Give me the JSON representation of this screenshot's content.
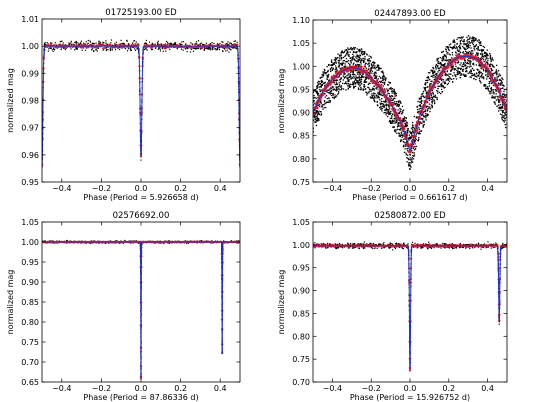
{
  "figure": {
    "colors": {
      "data": "#000000",
      "binned": "#e8202a",
      "model": "#1f2fc8",
      "frame": "#000000"
    }
  },
  "chart_data": [
    {
      "type": "scatter",
      "title": "01725193.00  ED",
      "xlabel": "Phase (Period = 5.926658 d)",
      "ylabel": "normalized mag",
      "xlim": [
        -0.5,
        0.5
      ],
      "ylim": [
        0.95,
        1.01
      ],
      "xticks": [
        -0.4,
        -0.2,
        0.0,
        0.2,
        0.4
      ],
      "xtick_labels": [
        "−0.4",
        "−0.2",
        "0.0",
        "0.2",
        "0.4"
      ],
      "yticks": [
        0.95,
        0.96,
        0.97,
        0.98,
        0.99,
        1.0,
        1.01
      ],
      "ytick_labels": [
        "0.95",
        "0.96",
        "0.97",
        "0.98",
        "0.99",
        "1.00",
        "1.01"
      ],
      "baseline": 1.0,
      "noise": 0.0012,
      "eclipses": [
        {
          "phase": -0.5,
          "depth": 0.044,
          "width": 0.006
        },
        {
          "phase": 0.0,
          "depth": 0.04,
          "width": 0.006
        },
        {
          "phase": 0.5,
          "depth": 0.044,
          "width": 0.006
        }
      ],
      "series": [
        {
          "name": "",
          "kind": "raw"
        },
        {
          "name": "",
          "kind": "binned"
        },
        {
          "name": "",
          "kind": "model"
        }
      ]
    },
    {
      "type": "scatter",
      "title": "02447893.00  ED",
      "xlabel": "Phase (Period = 0.661617 d)",
      "ylabel": "normalized mag",
      "xlim": [
        -0.5,
        0.5
      ],
      "ylim": [
        0.75,
        1.1
      ],
      "xticks": [
        -0.4,
        -0.2,
        0.0,
        0.2,
        0.4
      ],
      "xtick_labels": [
        "−0.4",
        "−0.2",
        "0.0",
        "0.2",
        "0.4"
      ],
      "yticks": [
        0.75,
        0.8,
        0.85,
        0.9,
        0.95,
        1.0,
        1.05,
        1.1
      ],
      "ytick_labels": [
        "0.75",
        "0.80",
        "0.85",
        "0.90",
        "0.95",
        "1.00",
        "1.05",
        "1.10"
      ],
      "curve_points": [
        [
          -0.5,
          0.9
        ],
        [
          -0.45,
          0.945
        ],
        [
          -0.4,
          0.972
        ],
        [
          -0.35,
          0.99
        ],
        [
          -0.3,
          0.998
        ],
        [
          -0.25,
          0.993
        ],
        [
          -0.2,
          0.975
        ],
        [
          -0.15,
          0.952
        ],
        [
          -0.1,
          0.92
        ],
        [
          -0.06,
          0.89
        ],
        [
          -0.03,
          0.86
        ],
        [
          -0.01,
          0.83
        ],
        [
          0.0,
          0.818
        ],
        [
          0.01,
          0.83
        ],
        [
          0.03,
          0.865
        ],
        [
          0.06,
          0.905
        ],
        [
          0.1,
          0.945
        ],
        [
          0.15,
          0.98
        ],
        [
          0.2,
          1.005
        ],
        [
          0.25,
          1.02
        ],
        [
          0.3,
          1.022
        ],
        [
          0.35,
          1.015
        ],
        [
          0.4,
          0.992
        ],
        [
          0.45,
          0.955
        ],
        [
          0.5,
          0.905
        ]
      ],
      "scatter_spread": 0.045,
      "series": [
        {
          "name": "",
          "kind": "raw"
        },
        {
          "name": "",
          "kind": "binned"
        },
        {
          "name": "",
          "kind": "model"
        }
      ]
    },
    {
      "type": "scatter",
      "title": "02576692.00",
      "xlabel": "Phase (Period = 87.86336 d)",
      "ylabel": "normalized mag",
      "xlim": [
        -0.5,
        0.5
      ],
      "ylim": [
        0.65,
        1.05
      ],
      "xticks": [
        -0.4,
        -0.2,
        0.0,
        0.2,
        0.4
      ],
      "xtick_labels": [
        "−0.4",
        "−0.2",
        "0.0",
        "0.2",
        "0.4"
      ],
      "yticks": [
        0.65,
        0.7,
        0.75,
        0.8,
        0.85,
        0.9,
        0.95,
        1.0,
        1.05
      ],
      "ytick_labels": [
        "0.65",
        "0.70",
        "0.75",
        "0.80",
        "0.85",
        "0.90",
        "0.95",
        "1.00",
        "1.05"
      ],
      "baseline": 1.0,
      "noise": 0.002,
      "eclipses": [
        {
          "phase": 0.0,
          "depth": 0.34,
          "width": 0.0015
        },
        {
          "phase": 0.41,
          "depth": 0.28,
          "width": 0.0015
        }
      ],
      "series": [
        {
          "name": "",
          "kind": "raw"
        },
        {
          "name": "",
          "kind": "binned"
        },
        {
          "name": "",
          "kind": "model"
        }
      ]
    },
    {
      "type": "scatter",
      "title": "02580872.00  ED",
      "xlabel": "Phase (Period = 15.926752 d)",
      "ylabel": "normalized mag",
      "xlim": [
        -0.5,
        0.5
      ],
      "ylim": [
        0.7,
        1.05
      ],
      "xticks": [
        -0.4,
        -0.2,
        0.0,
        0.2,
        0.4
      ],
      "xtick_labels": [
        "−0.4",
        "−0.2",
        "0.0",
        "0.2",
        "0.4"
      ],
      "yticks": [
        0.7,
        0.75,
        0.8,
        0.85,
        0.9,
        0.95,
        1.0,
        1.05
      ],
      "ytick_labels": [
        "0.70",
        "0.75",
        "0.80",
        "0.85",
        "0.90",
        "0.95",
        "1.00",
        "1.05"
      ],
      "baseline": 0.998,
      "noise": 0.004,
      "eclipses": [
        {
          "phase": 0.0,
          "depth": 0.27,
          "width": 0.004
        },
        {
          "phase": 0.46,
          "depth": 0.165,
          "width": 0.004
        }
      ],
      "series": [
        {
          "name": "",
          "kind": "raw"
        },
        {
          "name": "",
          "kind": "binned"
        },
        {
          "name": "",
          "kind": "model"
        }
      ]
    }
  ]
}
